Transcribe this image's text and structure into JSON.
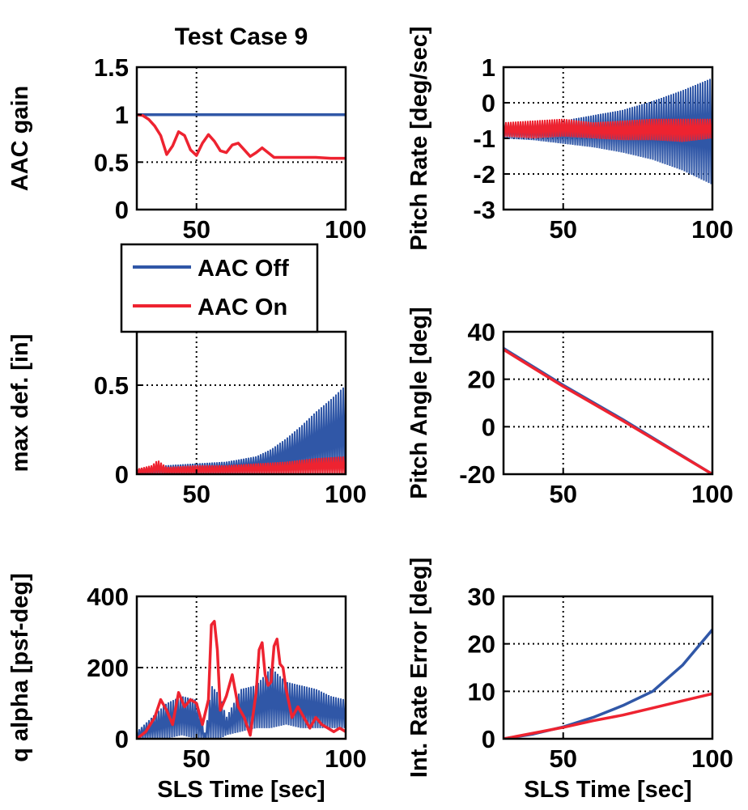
{
  "colors": {
    "aac_off": "#3057a7",
    "aac_on": "#ee2330",
    "axis": "#000000"
  },
  "legend": {
    "placement": "between-top-left-and-middle-left",
    "entries": [
      {
        "series": "aac_off",
        "label": "AAC Off"
      },
      {
        "series": "aac_on",
        "label": "AAC On"
      }
    ]
  },
  "chart_data": [
    {
      "id": "aac-gain",
      "type": "line",
      "title": "Test Case 9",
      "xlabel": "",
      "ylabel": "AAC gain",
      "xlim": [
        30,
        100
      ],
      "ylim": [
        0,
        1.5
      ],
      "xticks": [
        50,
        100
      ],
      "yticks": [
        0,
        0.5,
        1,
        1.5
      ],
      "xtick_labels": [
        "50",
        "100"
      ],
      "ytick_labels": [
        "0",
        "0.5",
        "1",
        "1.5"
      ],
      "grid": true,
      "series": [
        {
          "key": "aac_off",
          "name": "AAC Off",
          "x": [
            30,
            100
          ],
          "y": [
            1,
            1
          ]
        },
        {
          "key": "aac_on",
          "name": "AAC On",
          "x": [
            30,
            32,
            34,
            36,
            38,
            40,
            42,
            44,
            46,
            48,
            50,
            52,
            54,
            56,
            58,
            60,
            62,
            64,
            66,
            68,
            70,
            72,
            74,
            76,
            80,
            85,
            90,
            95,
            100
          ],
          "y": [
            1.0,
            0.99,
            0.95,
            0.88,
            0.78,
            0.58,
            0.67,
            0.82,
            0.78,
            0.63,
            0.57,
            0.7,
            0.79,
            0.72,
            0.62,
            0.6,
            0.68,
            0.7,
            0.63,
            0.56,
            0.6,
            0.65,
            0.6,
            0.55,
            0.55,
            0.55,
            0.55,
            0.54,
            0.54
          ]
        }
      ]
    },
    {
      "id": "pitch-rate",
      "type": "line",
      "title": "",
      "xlabel": "",
      "ylabel": "Pitch Rate [deg/sec]",
      "xlim": [
        30,
        100
      ],
      "ylim": [
        -3,
        1
      ],
      "xticks": [
        50,
        100
      ],
      "yticks": [
        -3,
        -2,
        -1,
        0,
        1
      ],
      "xtick_labels": [
        "50",
        "100"
      ],
      "ytick_labels": [
        "-3",
        "-2",
        "-1",
        "0",
        "1"
      ],
      "grid": true,
      "series": [
        {
          "key": "aac_off",
          "name": "AAC Off",
          "mode": "band",
          "x": [
            30,
            40,
            50,
            60,
            70,
            80,
            90,
            100
          ],
          "lower": [
            -1.0,
            -1.05,
            -1.15,
            -1.25,
            -1.4,
            -1.6,
            -1.9,
            -2.3
          ],
          "upper": [
            -0.6,
            -0.6,
            -0.5,
            -0.35,
            -0.2,
            0.05,
            0.35,
            0.7
          ]
        },
        {
          "key": "aac_on",
          "name": "AAC On",
          "mode": "band",
          "x": [
            30,
            40,
            50,
            60,
            70,
            80,
            90,
            100
          ],
          "lower": [
            -0.95,
            -1.0,
            -0.95,
            -1.0,
            -1.05,
            -1.05,
            -1.1,
            -1.0
          ],
          "upper": [
            -0.55,
            -0.5,
            -0.45,
            -0.55,
            -0.5,
            -0.45,
            -0.45,
            -0.45
          ]
        }
      ]
    },
    {
      "id": "max-def",
      "type": "line",
      "title": "",
      "xlabel": "",
      "ylabel": "max def. [in]",
      "xlim": [
        30,
        100
      ],
      "ylim": [
        0,
        0.8
      ],
      "xticks": [
        50,
        100
      ],
      "yticks": [
        0,
        0.5
      ],
      "xtick_labels": [
        "50",
        "100"
      ],
      "ytick_labels": [
        "0",
        "0.5"
      ],
      "grid": true,
      "series": [
        {
          "key": "aac_off",
          "name": "AAC Off",
          "mode": "band",
          "x": [
            30,
            40,
            50,
            60,
            70,
            75,
            80,
            85,
            90,
            95,
            100
          ],
          "lower": [
            0,
            0,
            0,
            0,
            0,
            0,
            0,
            0,
            0,
            0,
            0
          ],
          "upper": [
            0.03,
            0.05,
            0.06,
            0.07,
            0.1,
            0.14,
            0.2,
            0.27,
            0.35,
            0.42,
            0.5
          ]
        },
        {
          "key": "aac_on",
          "name": "AAC On",
          "mode": "band",
          "x": [
            30,
            35,
            37,
            40,
            50,
            60,
            70,
            80,
            90,
            100
          ],
          "lower": [
            0,
            0,
            0,
            0,
            0,
            0,
            0,
            0,
            0,
            0
          ],
          "upper": [
            0.03,
            0.05,
            0.08,
            0.04,
            0.05,
            0.05,
            0.06,
            0.07,
            0.09,
            0.1
          ]
        }
      ]
    },
    {
      "id": "pitch-angle",
      "type": "line",
      "title": "",
      "xlabel": "",
      "ylabel": "Pitch Angle [deg]",
      "xlim": [
        30,
        100
      ],
      "ylim": [
        -20,
        40
      ],
      "xticks": [
        50,
        100
      ],
      "yticks": [
        -20,
        0,
        20,
        40
      ],
      "xtick_labels": [
        "50",
        "100"
      ],
      "ytick_labels": [
        "-20",
        "0",
        "20",
        "40"
      ],
      "grid": true,
      "series": [
        {
          "key": "aac_off",
          "name": "AAC Off",
          "x": [
            30,
            50,
            70,
            100
          ],
          "y": [
            33,
            17.5,
            3,
            -20
          ]
        },
        {
          "key": "aac_on",
          "name": "AAC On",
          "x": [
            30,
            50,
            70,
            100
          ],
          "y": [
            32.5,
            17,
            2.5,
            -20
          ]
        }
      ]
    },
    {
      "id": "q-alpha",
      "type": "line",
      "title": "",
      "xlabel": "SLS Time [sec]",
      "ylabel": "q alpha [psf-deg]",
      "xlim": [
        30,
        100
      ],
      "ylim": [
        0,
        400
      ],
      "xticks": [
        50,
        100
      ],
      "yticks": [
        0,
        200,
        400
      ],
      "xtick_labels": [
        "50",
        "100"
      ],
      "ytick_labels": [
        "0",
        "200",
        "400"
      ],
      "grid": true,
      "series": [
        {
          "key": "aac_off",
          "name": "AAC Off",
          "mode": "band",
          "x": [
            30,
            35,
            40,
            45,
            50,
            53,
            55,
            58,
            60,
            65,
            70,
            75,
            80,
            85,
            90,
            95,
            100
          ],
          "lower": [
            0,
            0,
            0,
            10,
            0,
            0,
            0,
            0,
            10,
            20,
            30,
            30,
            40,
            30,
            30,
            30,
            30
          ],
          "upper": [
            20,
            60,
            100,
            120,
            110,
            10,
            150,
            120,
            60,
            140,
            150,
            200,
            160,
            150,
            140,
            120,
            110
          ]
        },
        {
          "key": "aac_on",
          "name": "AAC On",
          "x": [
            30,
            33,
            36,
            38,
            40,
            42,
            44,
            46,
            48,
            50,
            52,
            54,
            55,
            56,
            57,
            58,
            60,
            62,
            64,
            66,
            68,
            70,
            71,
            72,
            73,
            74,
            75,
            76,
            77,
            78,
            79,
            80,
            82,
            84,
            86,
            88,
            90,
            92,
            94,
            96,
            98,
            100
          ],
          "y": [
            0,
            20,
            60,
            110,
            80,
            40,
            130,
            90,
            110,
            100,
            40,
            110,
            320,
            330,
            250,
            80,
            120,
            180,
            90,
            60,
            10,
            130,
            250,
            270,
            180,
            150,
            160,
            260,
            280,
            210,
            200,
            140,
            60,
            90,
            60,
            30,
            60,
            40,
            30,
            20,
            30,
            20
          ]
        }
      ]
    },
    {
      "id": "int-rate-error",
      "type": "line",
      "title": "",
      "xlabel": "SLS Time [sec]",
      "ylabel": "Int. Rate Error [deg]",
      "xlim": [
        30,
        100
      ],
      "ylim": [
        0,
        30
      ],
      "xticks": [
        50,
        100
      ],
      "yticks": [
        0,
        10,
        20,
        30
      ],
      "xtick_labels": [
        "50",
        "100"
      ],
      "ytick_labels": [
        "0",
        "10",
        "20",
        "30"
      ],
      "grid": true,
      "series": [
        {
          "key": "aac_off",
          "name": "AAC Off",
          "x": [
            30,
            40,
            50,
            60,
            70,
            80,
            90,
            100
          ],
          "y": [
            0,
            1,
            2.5,
            4.5,
            7,
            10,
            15.5,
            23
          ]
        },
        {
          "key": "aac_on",
          "name": "AAC On",
          "x": [
            30,
            40,
            50,
            60,
            70,
            80,
            90,
            100
          ],
          "y": [
            0,
            1.2,
            2.4,
            3.8,
            5,
            6.5,
            8,
            9.5
          ]
        }
      ]
    }
  ]
}
